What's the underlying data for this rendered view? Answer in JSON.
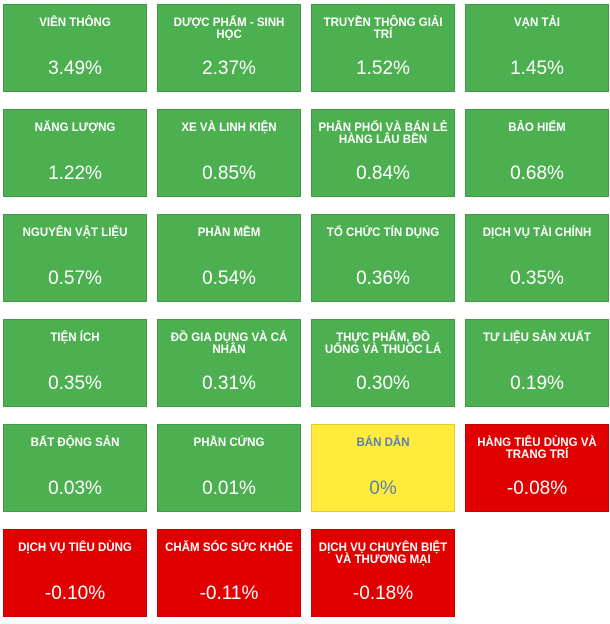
{
  "chart_data": {
    "type": "treemap",
    "colors": {
      "positive": "#4caf50",
      "neutral": "#ffeb3b",
      "negative": "#e00000",
      "neutral_text": "#5b7fb0"
    },
    "tiles": [
      {
        "name": "VIÊN THÔNG",
        "value": 3.49,
        "label": "3.49%"
      },
      {
        "name": "DƯỢC PHẨM - SINH HỌC",
        "value": 2.37,
        "label": "2.37%"
      },
      {
        "name": "TRUYỀN THÔNG GIẢI TRÍ",
        "value": 1.52,
        "label": "1.52%"
      },
      {
        "name": "VẠN TẢI",
        "value": 1.45,
        "label": "1.45%"
      },
      {
        "name": "NĂNG LƯỢNG",
        "value": 1.22,
        "label": "1.22%"
      },
      {
        "name": "XE VÀ LINH KIỆN",
        "value": 0.85,
        "label": "0.85%"
      },
      {
        "name": "PHÂN PHỐI VÀ BÁN LẺ HÀNG LÂU BỀN",
        "value": 0.84,
        "label": "0.84%"
      },
      {
        "name": "BẢO HIỂM",
        "value": 0.68,
        "label": "0.68%"
      },
      {
        "name": "NGUYÊN VẬT LIỆU",
        "value": 0.57,
        "label": "0.57%"
      },
      {
        "name": "PHẦN MỀM",
        "value": 0.54,
        "label": "0.54%"
      },
      {
        "name": "TỔ CHỨC TÍN DỤNG",
        "value": 0.36,
        "label": "0.36%"
      },
      {
        "name": "DỊCH VỤ TÀI CHÍNH",
        "value": 0.35,
        "label": "0.35%"
      },
      {
        "name": "TIỆN ÍCH",
        "value": 0.35,
        "label": "0.35%"
      },
      {
        "name": "ĐỒ GIA DỤNG VÀ CÁ NHÂN",
        "value": 0.31,
        "label": "0.31%"
      },
      {
        "name": "THỰC PHẨM, ĐỒ UỐNG VÀ THUỐC LÁ",
        "value": 0.3,
        "label": "0.30%"
      },
      {
        "name": "TƯ LIỆU SẢN XUẤT",
        "value": 0.19,
        "label": "0.19%"
      },
      {
        "name": "BẤT ĐỘNG SẢN",
        "value": 0.03,
        "label": "0.03%"
      },
      {
        "name": "PHẦN CỨNG",
        "value": 0.01,
        "label": "0.01%"
      },
      {
        "name": "BÁN DẪN",
        "value": 0,
        "label": "0%"
      },
      {
        "name": "HÀNG TIÊU DÙNG VÀ TRANG TRÍ",
        "value": -0.08,
        "label": "-0.08%"
      },
      {
        "name": "DỊCH VỤ TIÊU DÙNG",
        "value": -0.1,
        "label": "-0.10%"
      },
      {
        "name": "CHĂM SÓC SỨC KHỎE",
        "value": -0.11,
        "label": "-0.11%"
      },
      {
        "name": "DỊCH VỤ CHUYÊN BIỆT VÀ THƯƠNG MẠI",
        "value": -0.18,
        "label": "-0.18%"
      }
    ]
  }
}
